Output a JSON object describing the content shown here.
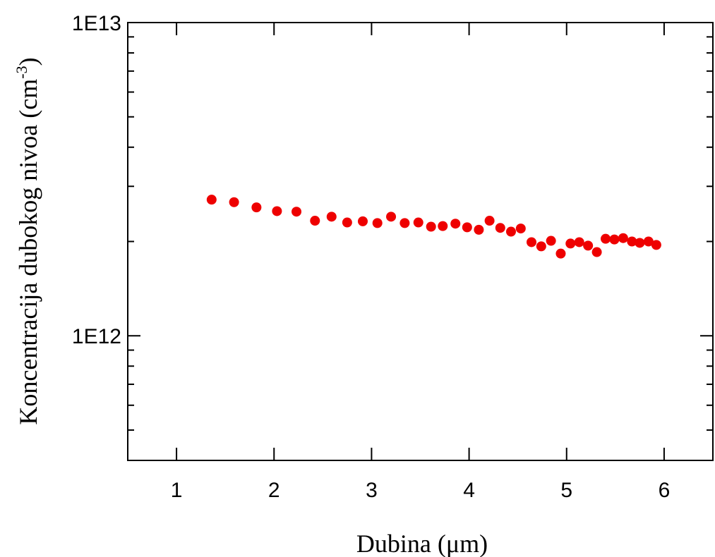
{
  "chart_data": {
    "type": "scatter",
    "title": "",
    "xlabel": "Dubina (μm)",
    "ylabel_main": "Koncentracija dubokog nivoa (cm",
    "ylabel_sup": "-3",
    "ylabel_close": ")",
    "xlim": [
      0.5,
      6.5
    ],
    "ylim": [
      400000000000,
      10000000000000
    ],
    "yscale": "log",
    "x_ticks": [
      1,
      2,
      3,
      4,
      5,
      6
    ],
    "x_tick_labels": [
      "1",
      "2",
      "3",
      "4",
      "5",
      "6"
    ],
    "y_ticks": [
      1000000000000,
      10000000000000
    ],
    "y_tick_labels": [
      "1E12",
      "1E13"
    ],
    "grid": false,
    "marker_color": "#ee0000",
    "series": [
      {
        "x": [
          1.36,
          1.59,
          1.82,
          2.03,
          2.23,
          2.42,
          2.59,
          2.75,
          2.91,
          3.06,
          3.2,
          3.34,
          3.48,
          3.61,
          3.73,
          3.86,
          3.98,
          4.1,
          4.21,
          4.32,
          4.43,
          4.53,
          4.64,
          4.74,
          4.84,
          4.94,
          5.04,
          5.13,
          5.22,
          5.31,
          5.4,
          5.49,
          5.58,
          5.67,
          5.75,
          5.84,
          5.92
        ],
        "y": [
          2720000000000,
          2670000000000,
          2570000000000,
          2500000000000,
          2490000000000,
          2330000000000,
          2400000000000,
          2300000000000,
          2320000000000,
          2290000000000,
          2400000000000,
          2290000000000,
          2300000000000,
          2230000000000,
          2240000000000,
          2280000000000,
          2220000000000,
          2180000000000,
          2330000000000,
          2210000000000,
          2150000000000,
          2200000000000,
          1990000000000,
          1930000000000,
          2010000000000,
          1830000000000,
          1970000000000,
          1990000000000,
          1940000000000,
          1850000000000,
          2040000000000,
          2030000000000,
          2050000000000,
          2000000000000,
          1980000000000,
          2000000000000,
          1950000000000
        ]
      }
    ]
  }
}
